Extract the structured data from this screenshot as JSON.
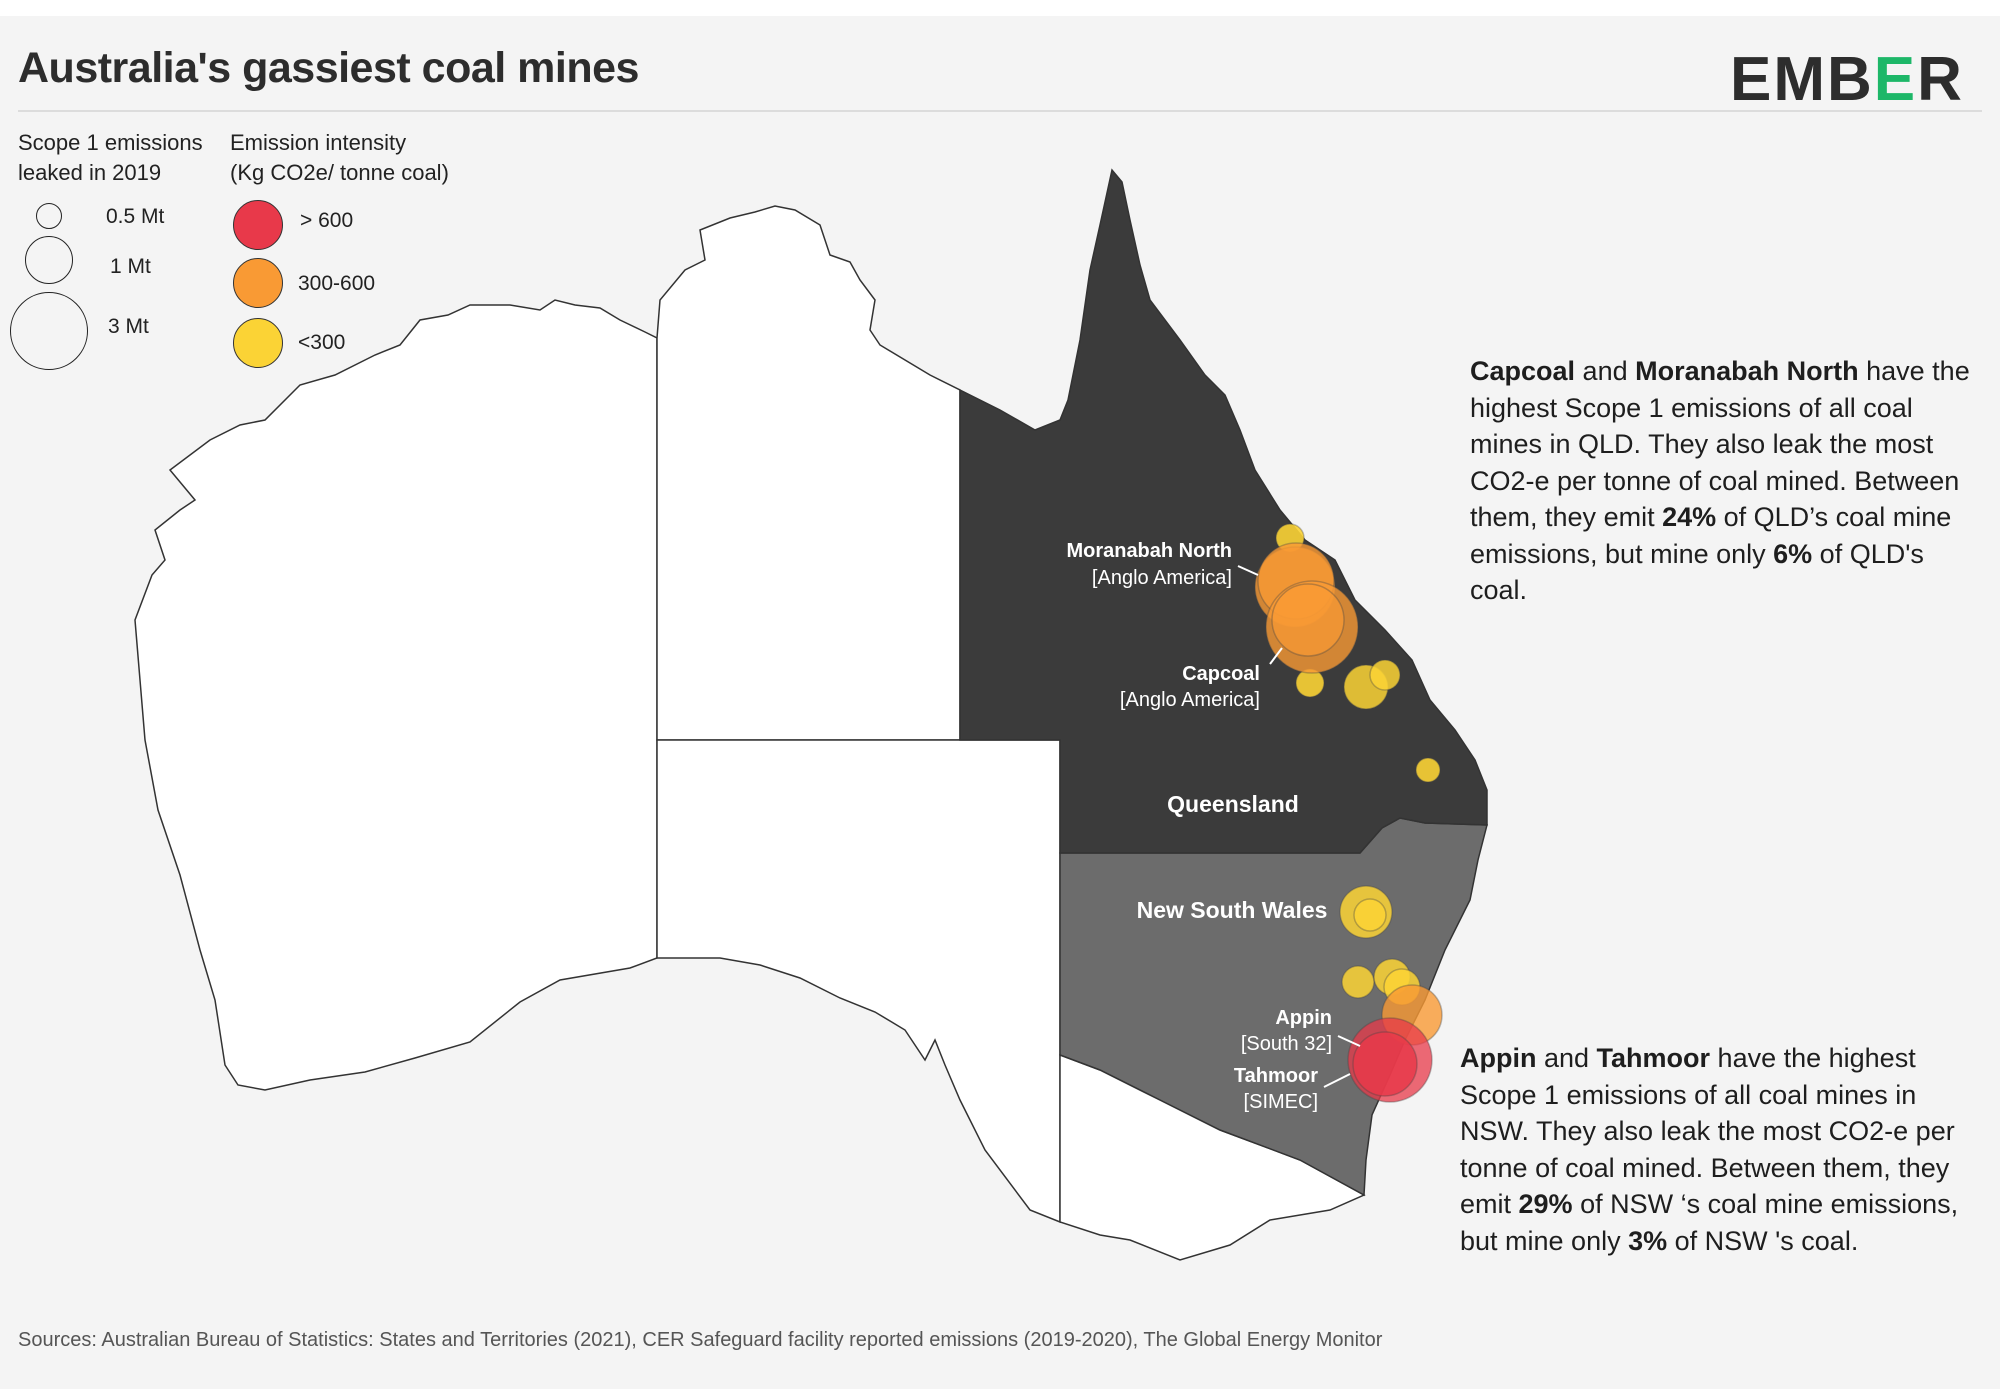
{
  "title": "Australia's gassiest coal mines",
  "brand": {
    "logo_text": "EMBER",
    "accent_color": "#1db768",
    "text_color": "#2d2d2d"
  },
  "legend": {
    "size_title_line1": "Scope 1 emissions",
    "size_title_line2": "leaked in 2019",
    "sizes": [
      {
        "label": "0.5 Mt",
        "value_mt": 0.5
      },
      {
        "label": "1 Mt",
        "value_mt": 1
      },
      {
        "label": "3 Mt",
        "value_mt": 3
      }
    ],
    "intensity_title_line1": "Emission intensity",
    "intensity_title_line2": "(Kg CO2e/ tonne coal)",
    "intensities": [
      {
        "label": "> 600",
        "color": "#e8394a"
      },
      {
        "label": "300-600",
        "color": "#f99a34"
      },
      {
        "label": "<300",
        "color": "#fbd335"
      }
    ]
  },
  "map": {
    "colors": {
      "queensland": "#3b3b3b",
      "new_south_wales": "#6c6c6c",
      "other_states": "#ffffff",
      "border": "#333333"
    },
    "regions": {
      "queensland": "Queensland",
      "new_south_wales": "New South Wales"
    },
    "mines": [
      {
        "name": "Moranabah North",
        "owner": "[Anglo America]",
        "intensity_class": "300-600"
      },
      {
        "name": "Capcoal",
        "owner": "[Anglo America]",
        "intensity_class": "300-600"
      },
      {
        "name": "Appin",
        "owner": "[South 32]",
        "intensity_class": "> 600"
      },
      {
        "name": "Tahmoor",
        "owner": "[SIMEC]",
        "intensity_class": "> 600"
      }
    ]
  },
  "annotations": {
    "qld": {
      "b1": "Capcoal",
      "t1": " and ",
      "b2": "Moranabah North",
      "t2": " have the highest Scope 1 emissions of all coal mines in QLD. They also leak the most CO2-e per tonne of coal mined. Between them, they emit ",
      "b3": "24%",
      "t3": " of QLD’s coal mine emissions, but mine only ",
      "b4": "6%",
      "t4": " of QLD's coal."
    },
    "nsw": {
      "b1": "Appin",
      "t1": " and ",
      "b2": "Tahmoor",
      "t2": " have the highest Scope 1 emissions of all coal mines in NSW. They also leak the most CO2-e per tonne of coal mined. Between them, they emit ",
      "b3": "29%",
      "t3": " of NSW ‘s coal mine emissions, but mine only ",
      "b4": "3%",
      "t4": " of NSW 's coal."
    }
  },
  "sources": "Sources: Australian Bureau of Statistics: States and Territories (2021), CER Safeguard facility reported emissions (2019-2020), The Global Energy Monitor"
}
